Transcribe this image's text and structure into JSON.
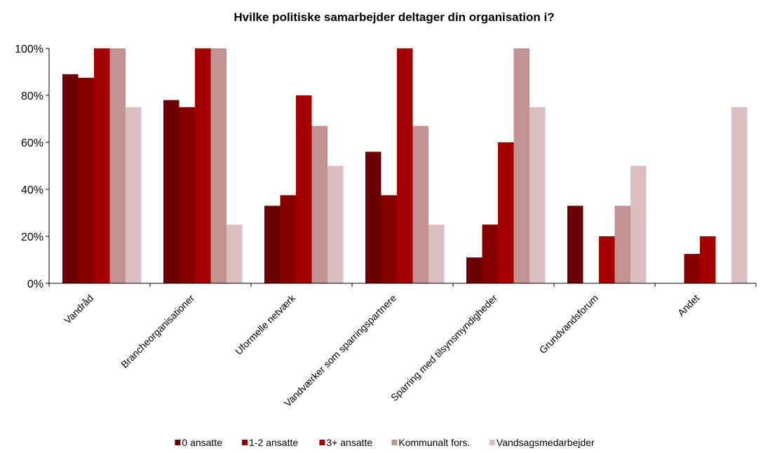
{
  "chart_data": {
    "type": "bar",
    "title": "Hvilke politiske samarbejder deltager din organisation i?",
    "xlabel": "",
    "ylabel": "",
    "ylim": [
      0,
      100
    ],
    "yticks": [
      "0%",
      "20%",
      "40%",
      "60%",
      "80%",
      "100%"
    ],
    "ytick_values": [
      0,
      20,
      40,
      60,
      80,
      100
    ],
    "grid": false,
    "legend_position": "bottom",
    "categories": [
      "Vandråd",
      "Brancheorganisationer",
      "Uformelle netværk",
      "Vandværker som sparringspartnere",
      "Sparring med tilsynsmyndigheder",
      "Grundvandsforum",
      "Andet"
    ],
    "series": [
      {
        "name": "0 ansatte",
        "color": "#6b0000",
        "values": [
          89,
          78,
          33,
          56,
          11,
          33,
          0
        ]
      },
      {
        "name": "1-2 ansatte",
        "color": "#870000",
        "values": [
          87.5,
          75,
          37.5,
          37.5,
          25,
          0,
          12.5
        ]
      },
      {
        "name": "3+ ansatte",
        "color": "#a50000",
        "values": [
          100,
          100,
          80,
          100,
          60,
          20,
          20
        ]
      },
      {
        "name": "Kommunalt fors.",
        "color": "#c09494",
        "values": [
          100,
          100,
          67,
          67,
          100,
          33,
          0
        ]
      },
      {
        "name": "Vandsagsmedarbejder",
        "color": "#d9bfbf",
        "values": [
          75,
          25,
          50,
          25,
          75,
          50,
          75
        ]
      }
    ]
  }
}
